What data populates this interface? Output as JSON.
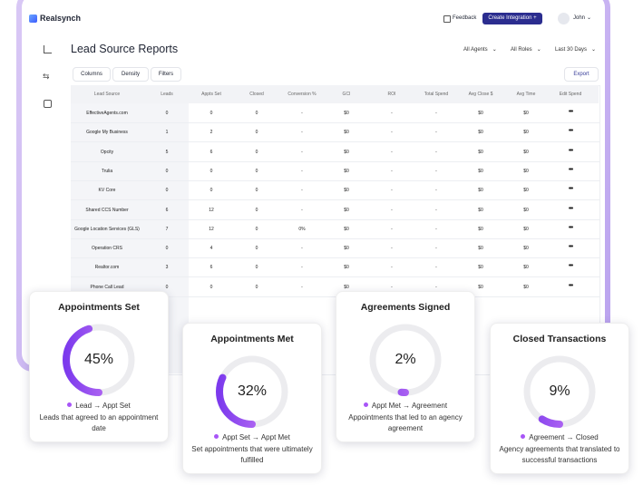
{
  "header": {
    "brand": "Realsynch",
    "feedback": "Feedback",
    "create_button": "Create Integration",
    "user": "John"
  },
  "page": {
    "title": "Lead Source Reports",
    "filters": [
      "All Agents",
      "All Roles",
      "Last 30 Days"
    ],
    "toolbar": [
      "Columns",
      "Density",
      "Filters"
    ],
    "export": "Export"
  },
  "table": {
    "columns": [
      "Lead Source",
      "Leads",
      "Appts Set",
      "Closed",
      "Conversion %",
      "GCI",
      "ROI",
      "Total Spend",
      "Avg Close $",
      "Avg Time",
      "Edit Spend"
    ],
    "rows": [
      [
        "EffectiveAgents.com",
        0,
        0,
        0,
        "-",
        "$0",
        "-",
        "-",
        "$0",
        "$0"
      ],
      [
        "Google My Business",
        1,
        2,
        0,
        "-",
        "$0",
        "-",
        "-",
        "$0",
        "$0"
      ],
      [
        "Opcity",
        5,
        6,
        0,
        "-",
        "$0",
        "-",
        "-",
        "$0",
        "$0"
      ],
      [
        "Trulia",
        0,
        0,
        0,
        "-",
        "$0",
        "-",
        "-",
        "$0",
        "$0"
      ],
      [
        "KV Core",
        0,
        0,
        0,
        "-",
        "$0",
        "-",
        "-",
        "$0",
        "$0"
      ],
      [
        "Shared CCS Number",
        6,
        12,
        0,
        "-",
        "$0",
        "-",
        "-",
        "$0",
        "$0"
      ],
      [
        "Google Location Services (GLS)",
        7,
        12,
        0,
        "0%",
        "$0",
        "-",
        "-",
        "$0",
        "$0"
      ],
      [
        "Operation CRS",
        0,
        4,
        0,
        "-",
        "$0",
        "-",
        "-",
        "$0",
        "$0"
      ],
      [
        "Realtor.com",
        3,
        6,
        0,
        "-",
        "$0",
        "-",
        "-",
        "$0",
        "$0"
      ],
      [
        "Phone Call Lead",
        0,
        0,
        0,
        "-",
        "$0",
        "-",
        "-",
        "$0",
        "$0"
      ]
    ]
  },
  "cards": [
    {
      "title": "Appointments Set",
      "value": {
        "value": 45,
        "label": "45%"
      },
      "legend": "Lead → Appt Set",
      "description": "Leads that agreed to an appointment date"
    },
    {
      "title": "Appointments Met",
      "value": {
        "value": 32,
        "label": "32%"
      },
      "legend": "Appt Set → Appt Met",
      "description": "Set appointments that were ultimately fulfilled"
    },
    {
      "title": "Agreements Signed",
      "value": {
        "value": 2,
        "label": "2%"
      },
      "legend": "Appt Met → Agreement",
      "description": "Appointments that led to an agency agreement"
    },
    {
      "title": "Closed Transactions",
      "value": {
        "value": 9,
        "label": "9%"
      },
      "legend": "Agreement → Closed",
      "description": "Agency agreements that translated to successful transactions"
    }
  ]
}
